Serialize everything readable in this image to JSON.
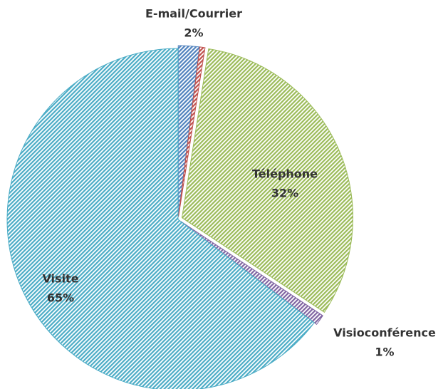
{
  "chart_data": {
    "type": "pie",
    "categories": [
      "E-mail/Courrier",
      null,
      "Téléphone",
      "Visioconférence",
      "Visite"
    ],
    "values": [
      2,
      0.5,
      32,
      1,
      65
    ],
    "value_labels": [
      "2%",
      null,
      "32%",
      "1%",
      "65%"
    ],
    "colors": [
      "#4f81bd",
      "#c0504d",
      "#9bbb59",
      "#8064a2",
      "#4bacc6"
    ]
  }
}
